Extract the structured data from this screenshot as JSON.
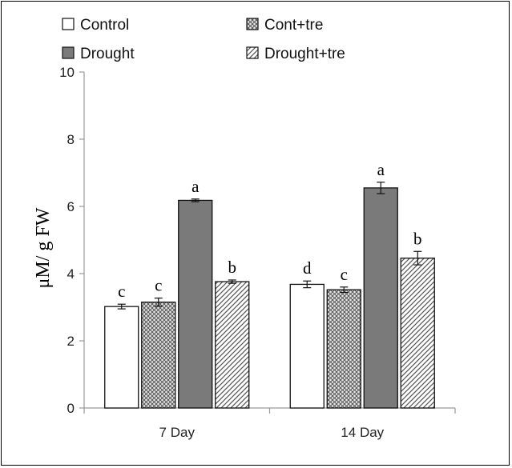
{
  "chart_data": {
    "type": "bar",
    "title": "",
    "xlabel": "",
    "ylabel": "μM/ g FW",
    "ylim": [
      0,
      10
    ],
    "yticks": [
      0,
      2,
      4,
      6,
      8,
      10
    ],
    "categories": [
      "7 Day",
      "14 Day"
    ],
    "grid": false,
    "legend_position": "top",
    "series": [
      {
        "name": "Control",
        "pattern": "plain",
        "fill": "#ffffff",
        "values": [
          3.02,
          3.68
        ],
        "errors": [
          0.07,
          0.1
        ],
        "letters": [
          "c",
          "d"
        ]
      },
      {
        "name": "Cont+tre",
        "pattern": "crosshatch",
        "fill": "#cfcfcf",
        "values": [
          3.15,
          3.52
        ],
        "errors": [
          0.12,
          0.08
        ],
        "letters": [
          "c",
          "c"
        ]
      },
      {
        "name": "Drought",
        "pattern": "solid",
        "fill": "#7a7a7a",
        "values": [
          6.18,
          6.55
        ],
        "errors": [
          0.04,
          0.17
        ],
        "letters": [
          "a",
          "a"
        ]
      },
      {
        "name": "Drought+tre",
        "pattern": "diagonal",
        "fill": "#ffffff",
        "values": [
          3.76,
          4.46
        ],
        "errors": [
          0.05,
          0.2
        ],
        "letters": [
          "b",
          "b"
        ]
      }
    ]
  }
}
